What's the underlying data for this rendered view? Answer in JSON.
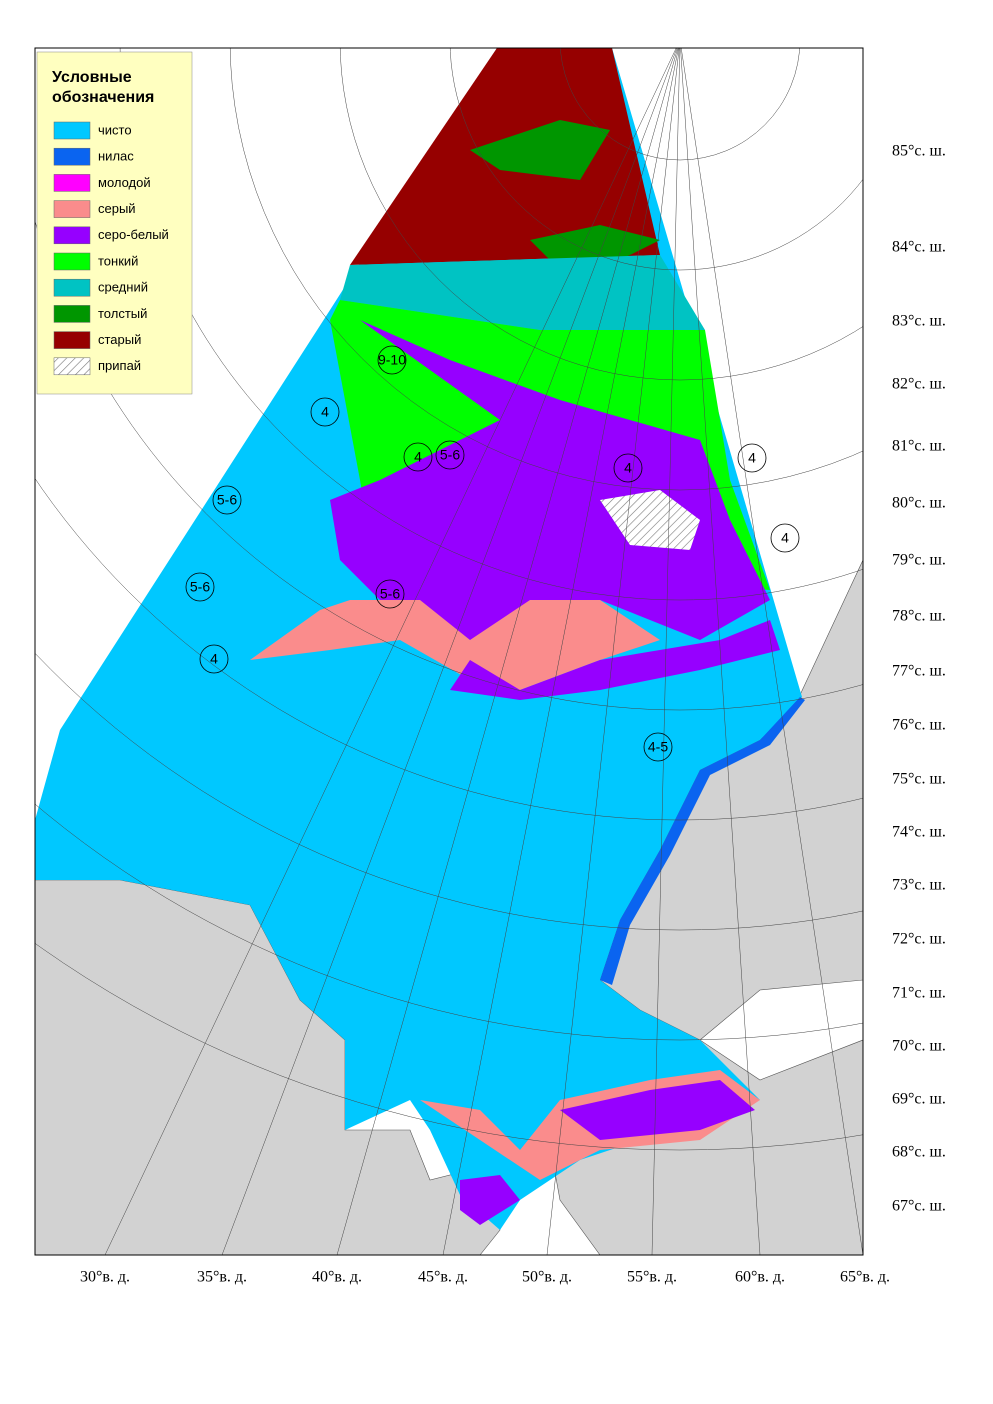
{
  "legend": {
    "title": "Условные обозначения",
    "items": [
      {
        "label": "чисто",
        "color": "#00c8ff"
      },
      {
        "label": "нилас",
        "color": "#0a64f0"
      },
      {
        "label": "молодой",
        "color": "#ff00ff"
      },
      {
        "label": "серый",
        "color": "#fa8c8c"
      },
      {
        "label": "серо-белый",
        "color": "#9600ff"
      },
      {
        "label": "тонкий",
        "color": "#00ff00"
      },
      {
        "label": "средний",
        "color": "#00c3c3"
      },
      {
        "label": "толстый",
        "color": "#009600"
      },
      {
        "label": "старый",
        "color": "#960000"
      },
      {
        "label": "припай",
        "color": "hatch"
      }
    ]
  },
  "latitude_labels": [
    "85°с. ш.",
    "84°с. ш.",
    "83°с. ш.",
    "82°с. ш.",
    "81°с. ш.",
    "80°с. ш.",
    "79°с. ш.",
    "78°с. ш.",
    "77°с. ш.",
    "76°с. ш.",
    "75°с. ш.",
    "74°с. ш.",
    "73°с. ш.",
    "72°с. ш.",
    "71°с. ш.",
    "70°с. ш.",
    "69°с. ш.",
    "68°с. ш.",
    "67°с. ш."
  ],
  "longitude_labels": [
    "30°в. д.",
    "35°в. д.",
    "40°в. д.",
    "45°в. д.",
    "50°в. д.",
    "55°в. д.",
    "60°в. д.",
    "65°в. д."
  ],
  "zone_labels": [
    "9-10",
    "4",
    "4",
    "5-6",
    "5-6",
    "5-6",
    "4",
    "5-6",
    "4",
    "4",
    "4",
    "4-5"
  ]
}
